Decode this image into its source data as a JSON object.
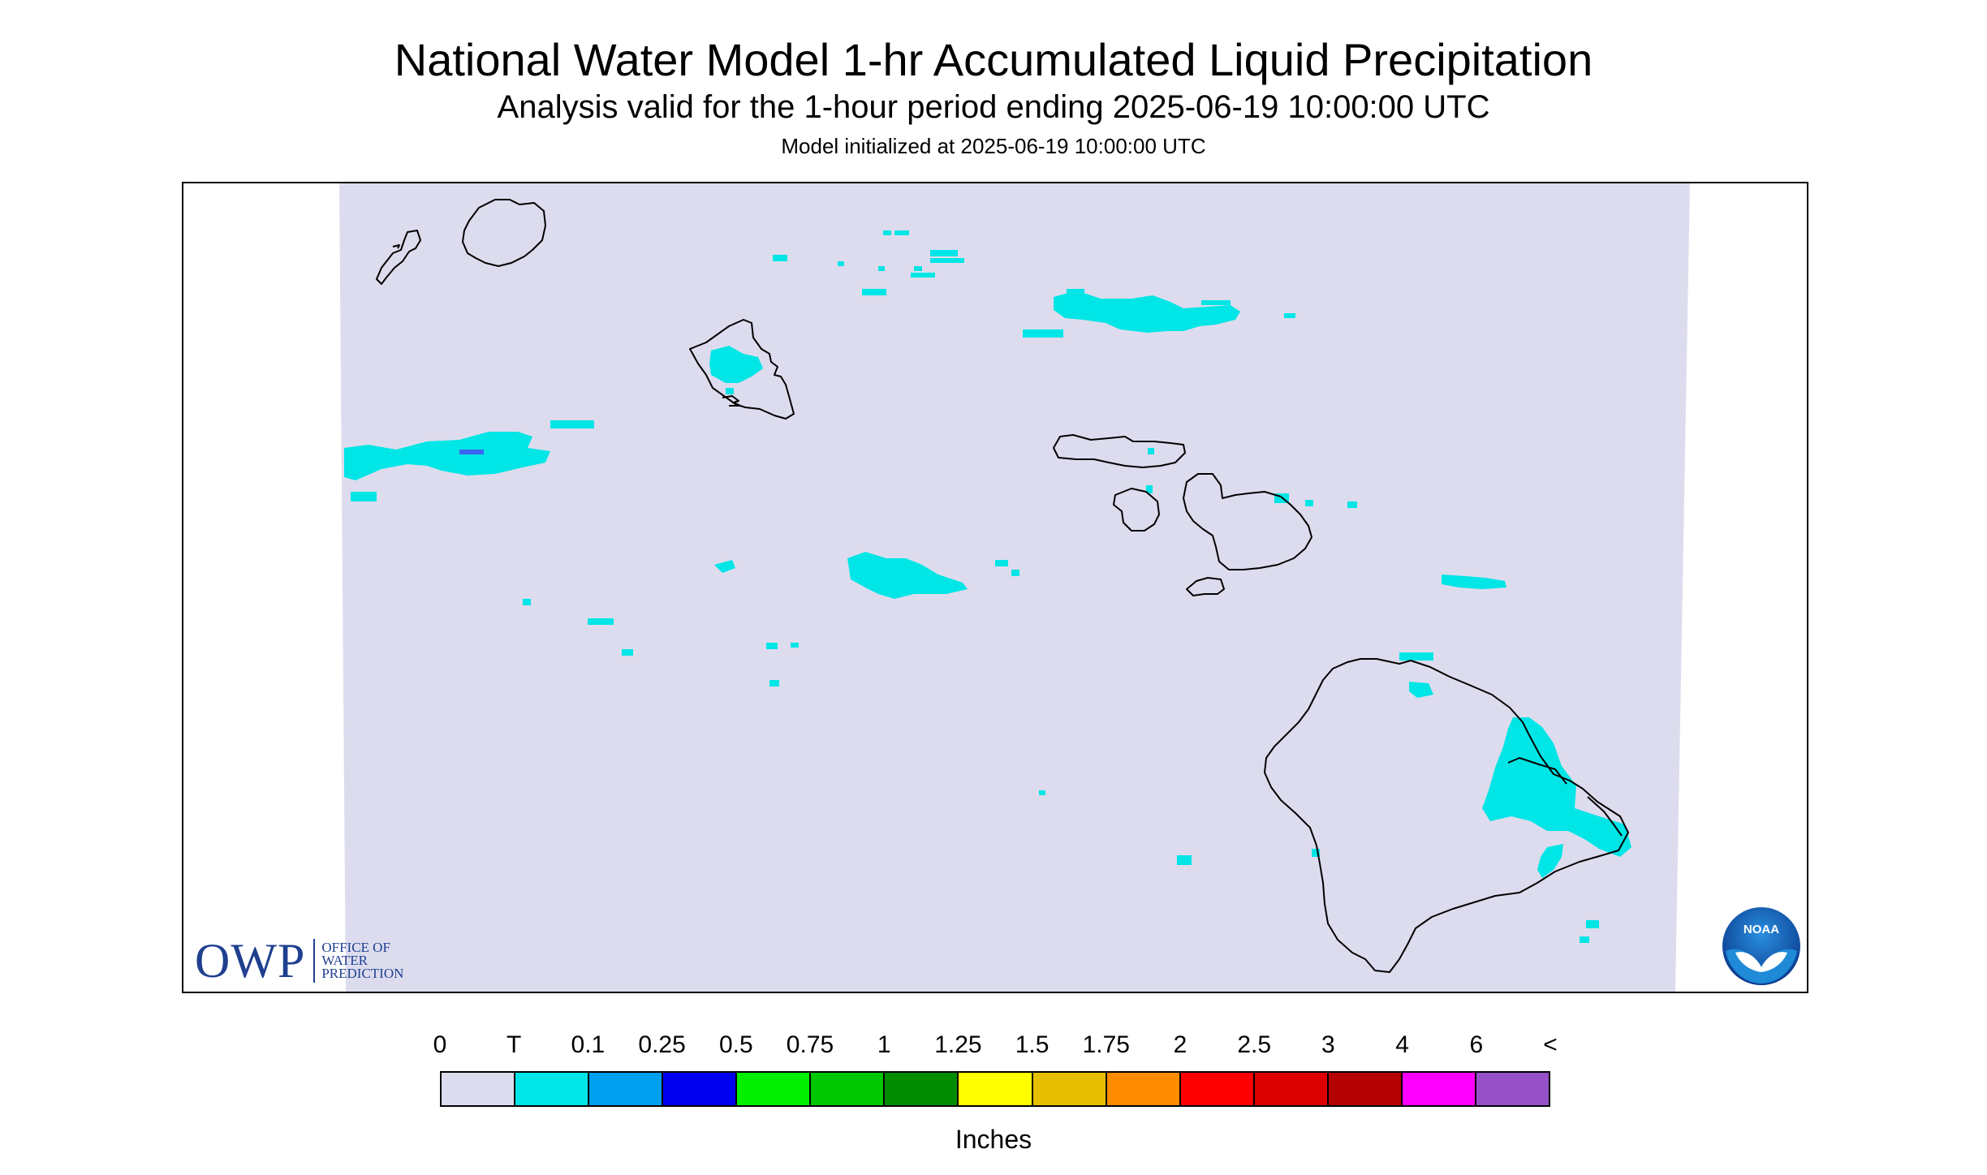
{
  "header": {
    "title": "National Water Model 1-hr Accumulated Liquid Precipitation",
    "subtitle": "Analysis valid for the 1-hour period ending 2025-06-19 10:00:00 UTC",
    "initialized": "Model initialized at 2025-06-19 10:00:00 UTC"
  },
  "legend": {
    "labels": [
      "0",
      "T",
      "0.1",
      "0.25",
      "0.5",
      "0.75",
      "1",
      "1.25",
      "1.5",
      "1.75",
      "2",
      "2.5",
      "3",
      "4",
      "6",
      "<"
    ],
    "colors": [
      "#dcdcee",
      "#00e5e5",
      "#00a0f0",
      "#0000f0",
      "#00f000",
      "#00c800",
      "#008c00",
      "#ffff00",
      "#e6c000",
      "#ff8c00",
      "#ff0000",
      "#dc0000",
      "#b40000",
      "#ff00ff",
      "#9650c8"
    ],
    "unit": "Inches"
  },
  "logos": {
    "owp_mark": "OWP",
    "owp_text_1": "OFFICE OF",
    "owp_text_2": "WATER",
    "owp_text_3": "PREDICTION",
    "noaa_text": "NOAA"
  },
  "map": {
    "background_color": "#dcdcee",
    "islands": [
      "Niihau",
      "Kauai",
      "Oahu",
      "Molokai",
      "Lanai",
      "Maui",
      "Kahoolawe",
      "Hawaii"
    ],
    "precip_color_trace": "#00e5e5",
    "precip_color_low": "#00a0f0"
  }
}
